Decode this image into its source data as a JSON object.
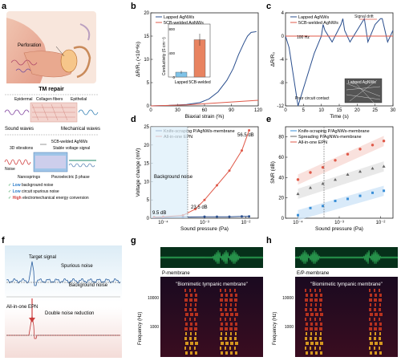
{
  "panels": {
    "a": {
      "label": "a",
      "ear": {
        "perforation": "Perforation",
        "caption": "TM repair"
      },
      "membrane": {
        "layers": [
          "Epidermal",
          "Collagen fibers",
          "Epithelial"
        ],
        "sound_waves": "Sound waves",
        "mechanical_waves": "Mechanical waves"
      },
      "epn": {
        "welded": "5CB-welded AgNWs",
        "vib": "3D vibrations",
        "stable": "Stable voltage signal",
        "noise": "Noise",
        "nanosprings": "Nanosprings",
        "beta": "Piezoelectric β phase",
        "checks": [
          {
            "strong": "Low",
            "rest": " background noise"
          },
          {
            "strong": "Low",
            "rest": " circuit spurious noise"
          },
          {
            "strong": "High",
            "rest": " electromechanical energy conversion"
          }
        ]
      }
    },
    "b": {
      "label": "b",
      "inset": {
        "ylabel": "Conductivity (S cm⁻¹)",
        "categories": [
          "Lapped",
          "5CB-welded"
        ]
      }
    },
    "c": {
      "label": "c",
      "freq": "100 Hz",
      "drift": "Signal drift",
      "poor": "Poor circuit contact",
      "micro": "Lapped AgNWs"
    },
    "d": {
      "label": "d",
      "bg": "Background noise",
      "annotations": [
        "9.5 dB",
        "23.5 dB",
        "56.5 dB"
      ]
    },
    "e": {
      "label": "e"
    },
    "f": {
      "label": "f",
      "target": "Target signal",
      "spurious": "Spurious noise",
      "background": "Background noise",
      "epn": "All-in-one EPN",
      "double": "Double noise reduction"
    },
    "g": {
      "label": "g",
      "membrane": "P-membrane",
      "phrase": "\"Biomimetic tympanic membrane\"",
      "ylabel": "Frequency (Hz)",
      "yticks": [
        "10000",
        "1000"
      ]
    },
    "h": {
      "label": "h",
      "membrane": "E/P-membrane",
      "phrase": "\"Biomimetic tympanic membrane\"",
      "ylabel": "Frequency (Hz)",
      "yticks": [
        "10000",
        "1000"
      ]
    }
  },
  "chart_data": [
    {
      "panel": "b",
      "type": "line",
      "xlabel": "Biaxial strain (%)",
      "ylabel": "ΔR/R₀ (×10⁴%)",
      "xlim": [
        0,
        120
      ],
      "ylim": [
        0,
        20
      ],
      "xticks": [
        0,
        30,
        60,
        90,
        120
      ],
      "yticks": [
        0,
        5,
        10,
        15,
        20
      ],
      "series": [
        {
          "name": "Lapped AgNWs",
          "color": "#2b4f8e",
          "x": [
            0,
            20,
            40,
            55,
            65,
            75,
            85,
            92,
            98,
            104,
            108,
            112,
            116,
            118
          ],
          "y": [
            0,
            0.1,
            0.3,
            0.7,
            1.5,
            3,
            5.5,
            8,
            11,
            13.5,
            15,
            15.8,
            15.9,
            16
          ]
        },
        {
          "name": "5CB-welded AgNWs",
          "color": "#e05a4a",
          "x": [
            0,
            40,
            80,
            120
          ],
          "y": [
            0,
            0.2,
            0.7,
            1.2
          ]
        }
      ],
      "inset": {
        "type": "bar",
        "categories": [
          "Lapped",
          "5CB-welded"
        ],
        "values": [
          80,
          620
        ],
        "errors": [
          25,
          100
        ],
        "ylim": [
          0,
          800
        ],
        "yticks": [
          0,
          400,
          800
        ],
        "colors": [
          "#7fc3e8",
          "#e88360"
        ]
      }
    },
    {
      "panel": "c",
      "type": "line",
      "xlabel": "Time (s)",
      "ylabel": "ΔR/R₀",
      "xlim": [
        0,
        30
      ],
      "ylim": [
        -12,
        4
      ],
      "xticks": [
        0,
        5,
        10,
        15,
        20,
        25,
        30
      ],
      "yticks": [
        -12,
        -8,
        -4,
        0,
        4
      ],
      "series": [
        {
          "name": "Lapped AgNWs",
          "color": "#2b4f8e",
          "x": [
            0,
            1,
            2,
            3.5,
            5,
            8,
            10,
            10.5,
            11,
            13,
            15.5,
            16,
            16.5,
            18,
            21.5,
            22,
            23,
            25,
            26.5,
            27,
            28.5,
            30
          ],
          "y": [
            0,
            -2,
            -6,
            -12,
            -9,
            -3,
            0,
            2,
            1,
            -1,
            2,
            3,
            1,
            -1,
            2.5,
            3,
            -1,
            2,
            3,
            3,
            -1,
            1
          ]
        },
        {
          "name": "5CB-welded AgNWs",
          "color": "#e05a4a",
          "x": [
            0,
            30
          ],
          "y": [
            0,
            0
          ]
        }
      ]
    },
    {
      "panel": "d",
      "type": "line",
      "xlabel": "Sound pressure (Pa)",
      "ylabel": "Voltage change (mV)",
      "xscale": "log",
      "xlim": [
        5e-05,
        0.02
      ],
      "ylim": [
        0,
        25
      ],
      "xticks": [
        0.0001,
        0.001,
        0.01
      ],
      "xticklabels": [
        "10⁻⁴",
        "10⁻³",
        "10⁻²"
      ],
      "yticks": [
        0,
        5,
        10,
        15,
        20,
        25
      ],
      "series": [
        {
          "name": "Knife-scraping P/AgNWs-membrane",
          "color": "#2b4f8e",
          "x": [
            6e-05,
            0.0001,
            0.0003,
            0.001,
            0.002,
            0.004,
            0.008,
            0.012
          ],
          "y": [
            0.2,
            0.2,
            0.3,
            0.4,
            0.4,
            0.4,
            0.5,
            0.5
          ]
        },
        {
          "name": "All-in-one EPN",
          "color": "#e05a4a",
          "x": [
            6e-05,
            0.0001,
            0.0003,
            0.0006,
            0.001,
            0.002,
            0.004,
            0.008,
            0.012
          ],
          "y": [
            0.3,
            0.4,
            0.8,
            2.5,
            5,
            9,
            13,
            18.5,
            24
          ]
        }
      ]
    },
    {
      "panel": "e",
      "type": "scatter",
      "xlabel": "Sound pressure (Pa)",
      "ylabel": "SNR (dB)",
      "xscale": "log",
      "xlim": [
        5e-05,
        0.02
      ],
      "ylim": [
        0,
        90
      ],
      "xticks": [
        0.0001,
        0.001,
        0.01
      ],
      "xticklabels": [
        "10⁻⁴",
        "10⁻³",
        "10⁻²"
      ],
      "yticks": [
        0,
        20,
        40,
        60,
        80
      ],
      "series": [
        {
          "name": "Knife-scraping P/AgNWs-membrane",
          "color": "#3a8fd8",
          "x": [
            0.0001,
            0.0002,
            0.0004,
            0.0008,
            0.0016,
            0.0032,
            0.0064,
            0.012
          ],
          "y": [
            3,
            10,
            12,
            17,
            19,
            22,
            25,
            27
          ]
        },
        {
          "name": "Spreading P/AgNWs-membrane",
          "color": "#666666",
          "x": [
            0.0001,
            0.0002,
            0.0004,
            0.0008,
            0.0016,
            0.0032,
            0.0064,
            0.012
          ],
          "y": [
            24,
            30,
            34,
            38,
            43,
            46,
            49,
            51
          ]
        },
        {
          "name": "All-in-one EPN",
          "color": "#e05a4a",
          "x": [
            0.0001,
            0.0002,
            0.0004,
            0.0008,
            0.0016,
            0.0032,
            0.0064,
            0.012
          ],
          "y": [
            38,
            45,
            50,
            57,
            63,
            68,
            72,
            76
          ]
        }
      ]
    }
  ]
}
